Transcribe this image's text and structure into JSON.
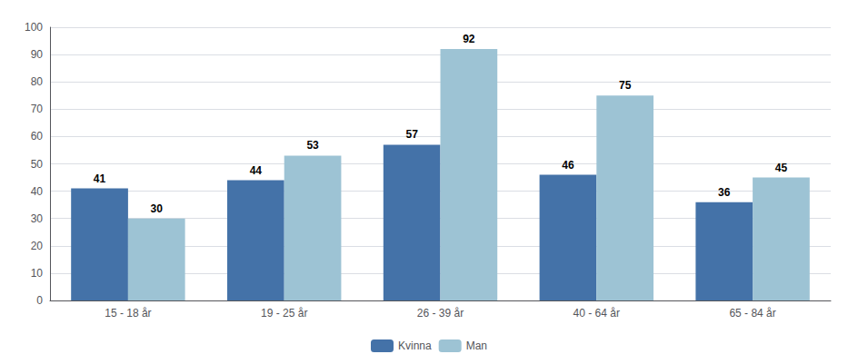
{
  "chart_data": {
    "type": "bar",
    "categories": [
      "15 - 18 år",
      "19 - 25 år",
      "26 - 39 år",
      "40 - 64 år",
      "65 - 84 år"
    ],
    "series": [
      {
        "name": "Kvinna",
        "color": "#4472A8",
        "values": [
          41,
          44,
          57,
          46,
          36
        ]
      },
      {
        "name": "Man",
        "color": "#9DC3D4",
        "values": [
          30,
          53,
          92,
          75,
          45
        ]
      }
    ],
    "ylim": [
      0,
      100
    ],
    "yticks": [
      0,
      10,
      20,
      30,
      40,
      50,
      60,
      70,
      80,
      90,
      100
    ],
    "grid": true,
    "legend": "bottom",
    "data_labels": true
  }
}
